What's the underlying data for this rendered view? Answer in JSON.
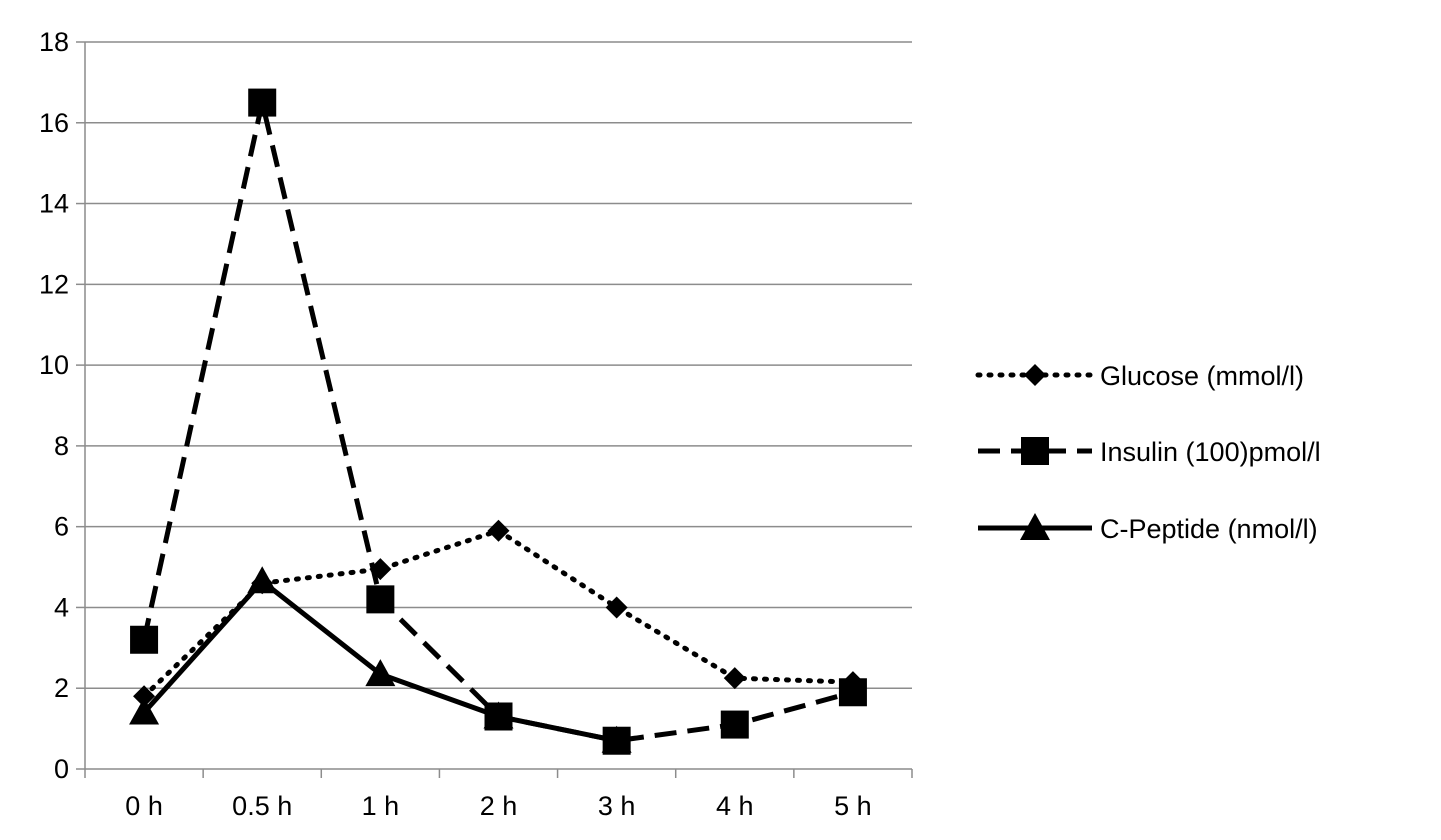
{
  "chart_data": {
    "type": "line",
    "title": "",
    "xlabel": "",
    "ylabel": "",
    "categories": [
      "0 h",
      "0.5 h",
      "1 h",
      "2 h",
      "3 h",
      "4 h",
      "5 h"
    ],
    "ylim": [
      0,
      18
    ],
    "yticks": [
      0,
      2,
      4,
      6,
      8,
      10,
      12,
      14,
      16,
      18
    ],
    "grid": "horizontal",
    "legend_position": "right",
    "series": [
      {
        "name": "Glucose (mmol/l)",
        "values": [
          1.8,
          4.6,
          4.95,
          5.9,
          4.0,
          2.25,
          2.15
        ],
        "line_style": "dotted",
        "marker": "diamond",
        "color": "#000000"
      },
      {
        "name": "Insulin (100)pmol/l",
        "values": [
          3.2,
          16.5,
          4.2,
          1.3,
          0.7,
          1.1,
          1.9
        ],
        "line_style": "dashed",
        "marker": "square",
        "color": "#000000"
      },
      {
        "name": "C-Peptide (nmol/l)",
        "values": [
          1.4,
          4.65,
          2.35,
          1.3,
          0.7,
          null,
          null
        ],
        "line_style": "solid",
        "marker": "triangle",
        "color": "#000000"
      }
    ]
  }
}
